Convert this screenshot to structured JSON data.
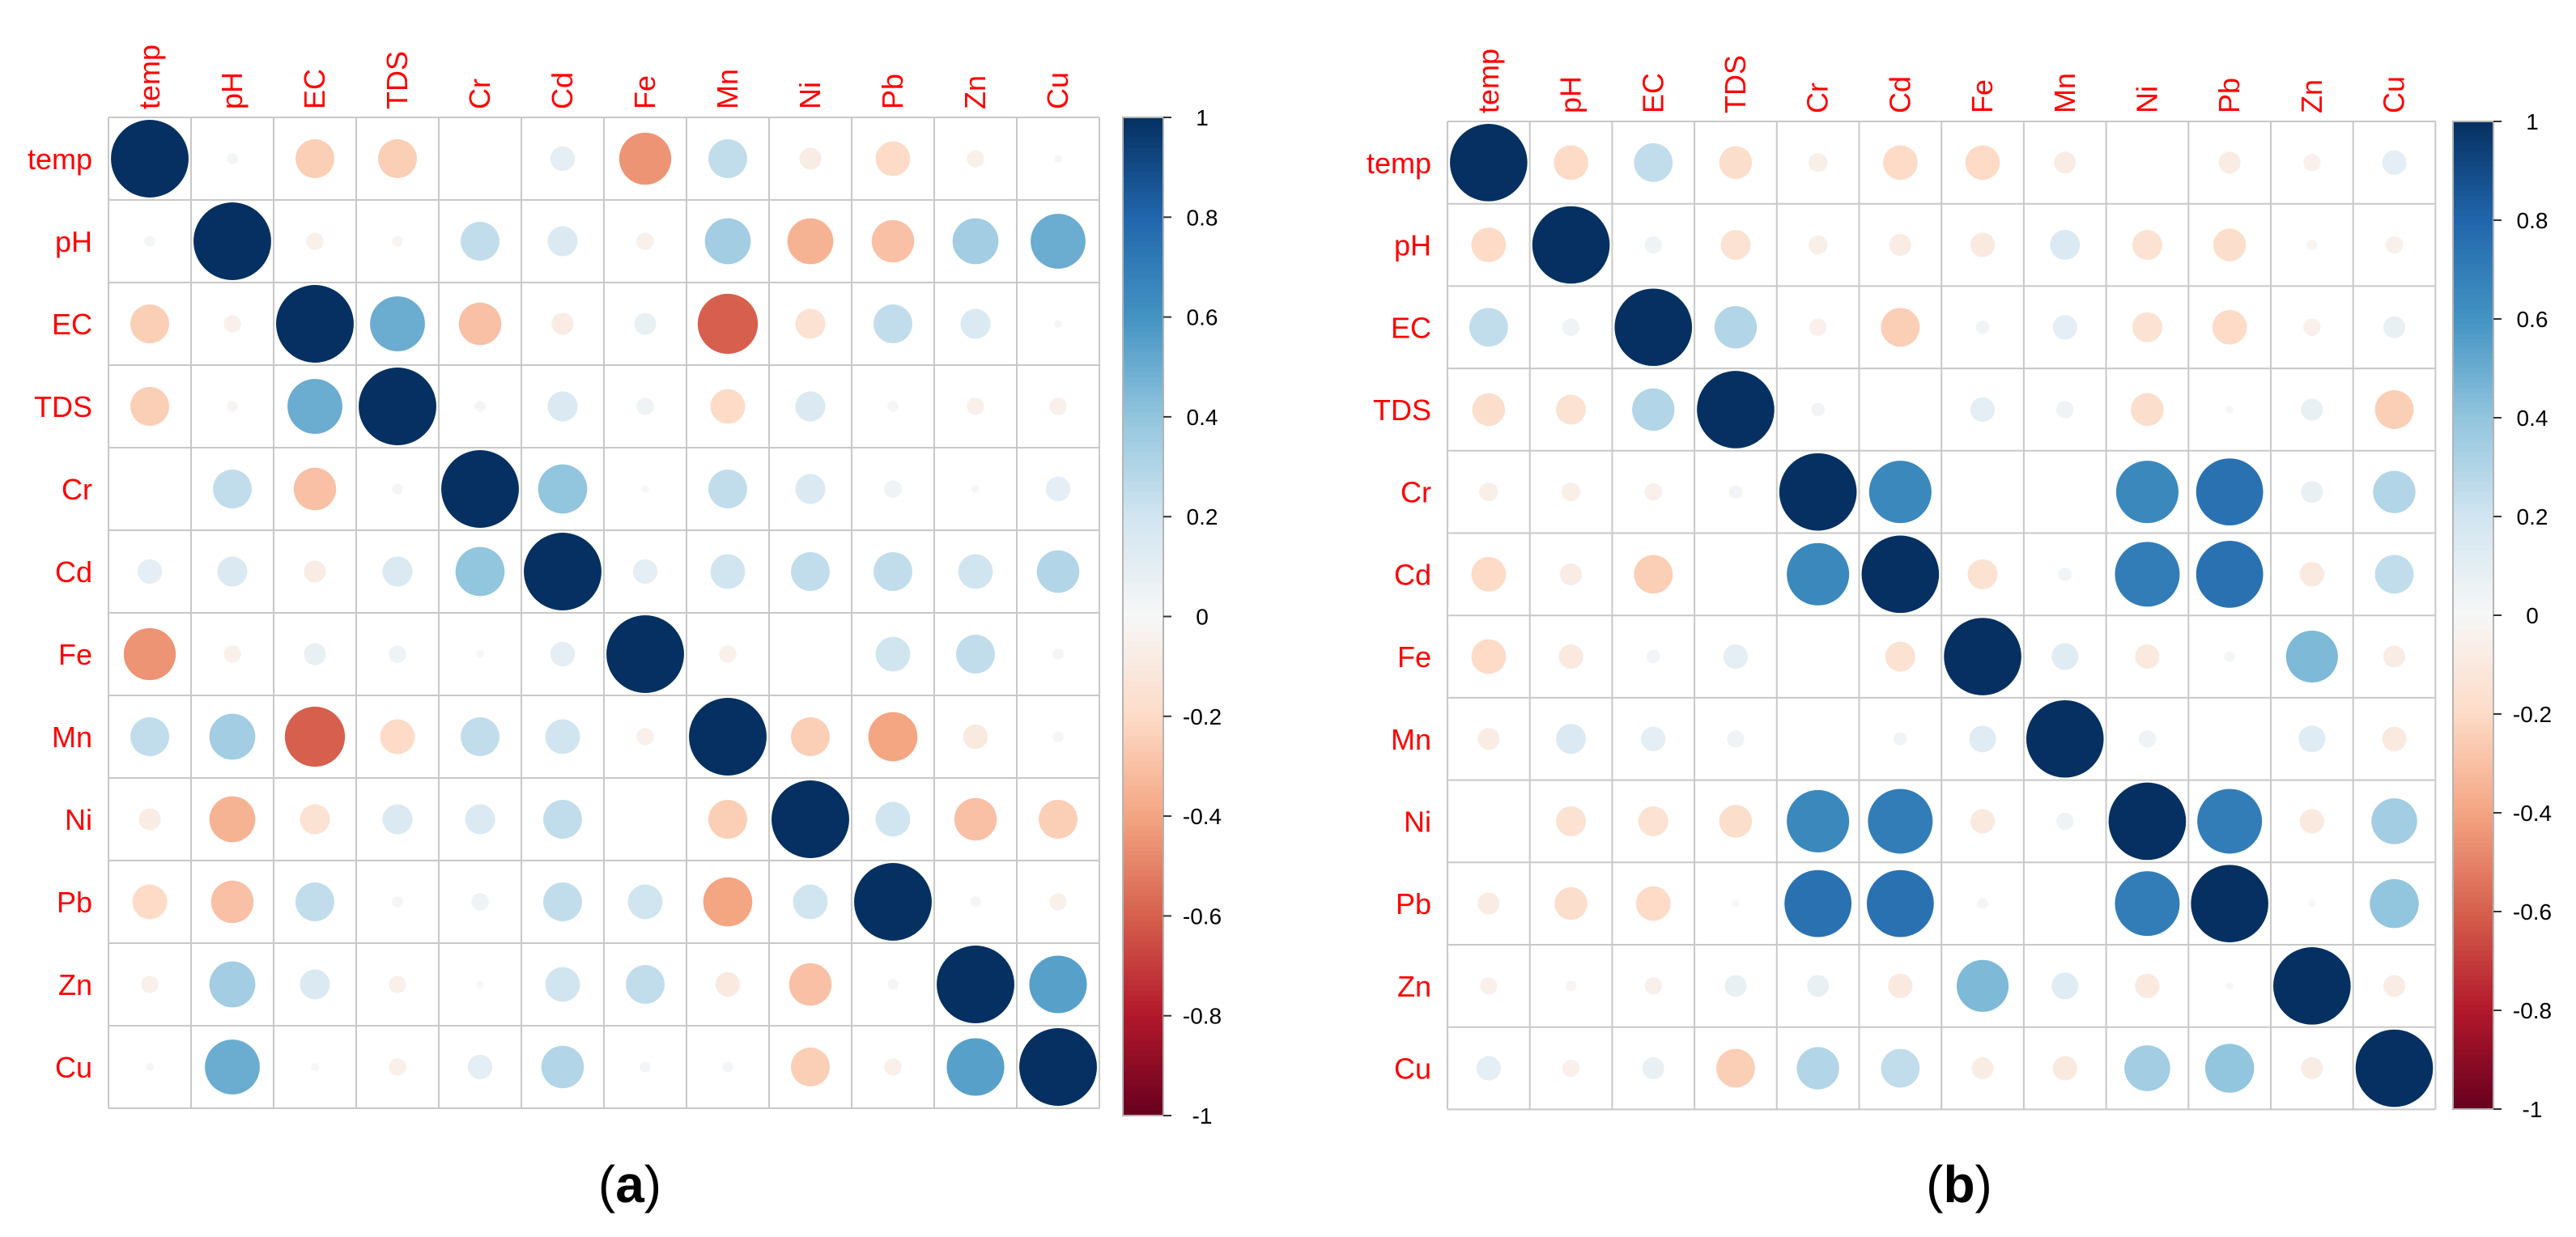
{
  "colors": {
    "label": "#ff0000",
    "grid": "#c8c8c8",
    "border": "#b4b4b4",
    "scale_neg1": "#67001f",
    "scale_neg08": "#b2182b",
    "scale_neg06": "#d6604d",
    "scale_neg04": "#f4a582",
    "scale_neg02": "#fddbc7",
    "scale_0": "#f7f7f7",
    "scale_pos02": "#d1e5f0",
    "scale_pos04": "#92c5de",
    "scale_pos06": "#4393c3",
    "scale_pos08": "#2166ac",
    "scale_pos1": "#053061"
  },
  "chart_data": [
    {
      "type": "heatmap",
      "caption": "(a)",
      "variables": [
        "temp",
        "pH",
        "EC",
        "TDS",
        "Cr",
        "Cd",
        "Fe",
        "Mn",
        "Ni",
        "Pb",
        "Zn",
        "Cu"
      ],
      "colorbar": {
        "range": [
          -1,
          1
        ],
        "tick_labels": [
          "1",
          "0.8",
          "0.6",
          "0.4",
          "0.2",
          "0",
          "-0.2",
          "-0.4",
          "-0.6",
          "-0.8",
          "-1"
        ]
      },
      "matrix": [
        [
          1.0,
          0.02,
          -0.25,
          -0.25,
          0.0,
          0.1,
          -0.45,
          0.25,
          -0.08,
          -0.2,
          -0.05,
          0.01
        ],
        [
          0.02,
          1.0,
          -0.05,
          -0.02,
          0.25,
          0.15,
          -0.05,
          0.35,
          -0.35,
          -0.3,
          0.35,
          0.5
        ],
        [
          -0.25,
          -0.05,
          1.0,
          0.5,
          -0.3,
          -0.08,
          0.08,
          -0.6,
          -0.15,
          0.25,
          0.15,
          0.01
        ],
        [
          -0.25,
          -0.02,
          0.5,
          1.0,
          0.02,
          0.15,
          0.05,
          -0.2,
          0.15,
          0.02,
          -0.05,
          -0.05
        ],
        [
          0.0,
          0.25,
          -0.3,
          0.02,
          1.0,
          0.4,
          0.01,
          0.25,
          0.15,
          0.05,
          0.01,
          0.1
        ],
        [
          0.1,
          0.15,
          -0.08,
          0.15,
          0.4,
          1.0,
          0.1,
          0.2,
          0.25,
          0.25,
          0.2,
          0.3
        ],
        [
          -0.45,
          -0.05,
          0.08,
          0.05,
          0.01,
          0.1,
          1.0,
          -0.05,
          0.0,
          0.2,
          0.25,
          0.02
        ],
        [
          0.25,
          0.35,
          -0.6,
          -0.2,
          0.25,
          0.2,
          -0.05,
          1.0,
          -0.25,
          -0.4,
          -0.1,
          0.02
        ],
        [
          -0.08,
          -0.35,
          -0.15,
          0.15,
          0.15,
          0.25,
          0.0,
          -0.25,
          1.0,
          0.2,
          -0.3,
          -0.25
        ],
        [
          -0.2,
          -0.3,
          0.25,
          0.02,
          0.05,
          0.25,
          0.2,
          -0.4,
          0.2,
          1.0,
          0.02,
          -0.05
        ],
        [
          -0.05,
          0.35,
          0.15,
          -0.05,
          0.01,
          0.2,
          0.25,
          -0.1,
          -0.3,
          0.02,
          1.0,
          0.55
        ],
        [
          0.01,
          0.5,
          0.01,
          -0.05,
          0.1,
          0.3,
          0.02,
          0.02,
          -0.25,
          -0.05,
          0.55,
          1.0
        ]
      ]
    },
    {
      "type": "heatmap",
      "caption": "(b)",
      "variables": [
        "temp",
        "pH",
        "EC",
        "TDS",
        "Cr",
        "Cd",
        "Fe",
        "Mn",
        "Ni",
        "Pb",
        "Zn",
        "Cu"
      ],
      "colorbar": {
        "range": [
          -1,
          1
        ],
        "tick_labels": [
          "1",
          "0.8",
          "0.6",
          "0.4",
          "0.2",
          "0",
          "-0.2",
          "-0.4",
          "-0.6",
          "-0.8",
          "-1"
        ]
      },
      "matrix": [
        [
          1.0,
          -0.2,
          0.25,
          -0.18,
          -0.06,
          -0.2,
          -0.2,
          -0.08,
          0.0,
          -0.08,
          -0.05,
          0.1
        ],
        [
          -0.2,
          1.0,
          0.05,
          -0.15,
          -0.06,
          -0.08,
          -0.1,
          0.15,
          -0.15,
          -0.18,
          -0.02,
          -0.05
        ],
        [
          0.25,
          0.05,
          1.0,
          0.3,
          -0.05,
          -0.25,
          0.03,
          0.1,
          -0.15,
          -0.2,
          -0.05,
          0.08
        ],
        [
          -0.18,
          -0.15,
          0.3,
          1.0,
          0.03,
          0.0,
          0.1,
          0.05,
          -0.18,
          0.01,
          0.08,
          -0.25
        ],
        [
          -0.06,
          -0.06,
          -0.05,
          0.03,
          1.0,
          0.65,
          0.0,
          0.0,
          0.65,
          0.75,
          0.08,
          0.3
        ],
        [
          -0.2,
          -0.08,
          -0.25,
          0.0,
          0.65,
          1.0,
          -0.15,
          0.03,
          0.7,
          0.75,
          -0.1,
          0.25
        ],
        [
          -0.2,
          -0.1,
          0.03,
          0.1,
          0.0,
          -0.15,
          1.0,
          0.12,
          -0.1,
          0.02,
          0.45,
          -0.08
        ],
        [
          -0.08,
          0.15,
          0.1,
          0.05,
          0.0,
          0.03,
          0.12,
          1.0,
          0.05,
          0.0,
          0.12,
          -0.1
        ],
        [
          0.0,
          -0.15,
          -0.15,
          -0.18,
          0.65,
          0.7,
          -0.1,
          0.05,
          1.0,
          0.7,
          -0.1,
          0.35
        ],
        [
          -0.08,
          -0.18,
          -0.2,
          0.01,
          0.75,
          0.75,
          0.02,
          0.0,
          0.7,
          1.0,
          0.01,
          0.4
        ],
        [
          -0.05,
          -0.02,
          -0.05,
          0.08,
          0.08,
          -0.1,
          0.45,
          0.12,
          -0.1,
          0.01,
          1.0,
          -0.08
        ],
        [
          0.1,
          -0.05,
          0.08,
          -0.25,
          0.3,
          0.25,
          -0.08,
          -0.1,
          0.35,
          0.4,
          -0.08,
          1.0
        ]
      ]
    }
  ]
}
